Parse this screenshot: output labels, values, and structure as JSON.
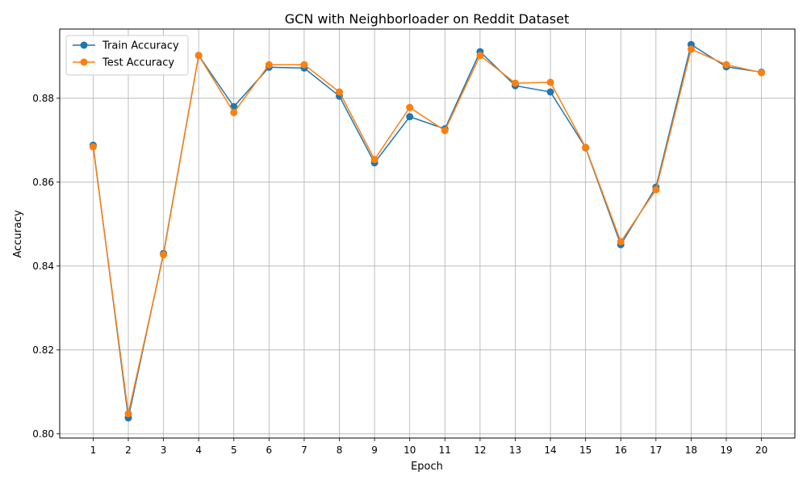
{
  "chart_data": {
    "type": "line",
    "title": "GCN with Neighborloader on Reddit Dataset",
    "xlabel": "Epoch",
    "ylabel": "Accuracy",
    "x": [
      1,
      2,
      3,
      4,
      5,
      6,
      7,
      8,
      9,
      10,
      11,
      12,
      13,
      14,
      15,
      16,
      17,
      18,
      19,
      20
    ],
    "ylim": [
      0.799,
      0.8965
    ],
    "yticks": [
      0.8,
      0.82,
      0.84,
      0.86,
      0.88
    ],
    "ytick_labels": [
      "0.80",
      "0.82",
      "0.84",
      "0.86",
      "0.88"
    ],
    "grid": true,
    "legend_position": "top-left",
    "series": [
      {
        "name": "Train Accuracy",
        "color": "#1f77b4",
        "values": [
          0.8688,
          0.8038,
          0.843,
          0.8902,
          0.878,
          0.8874,
          0.8872,
          0.8805,
          0.8646,
          0.8756,
          0.8727,
          0.8911,
          0.883,
          0.8815,
          0.8682,
          0.8451,
          0.8588,
          0.8928,
          0.8875,
          0.8862
        ]
      },
      {
        "name": "Test Accuracy",
        "color": "#ff7f0e",
        "values": [
          0.8684,
          0.8048,
          0.8427,
          0.8902,
          0.8766,
          0.888,
          0.888,
          0.8815,
          0.8654,
          0.8778,
          0.8723,
          0.8902,
          0.8836,
          0.8838,
          0.8683,
          0.8458,
          0.8582,
          0.8917,
          0.888,
          0.8861
        ]
      }
    ]
  }
}
